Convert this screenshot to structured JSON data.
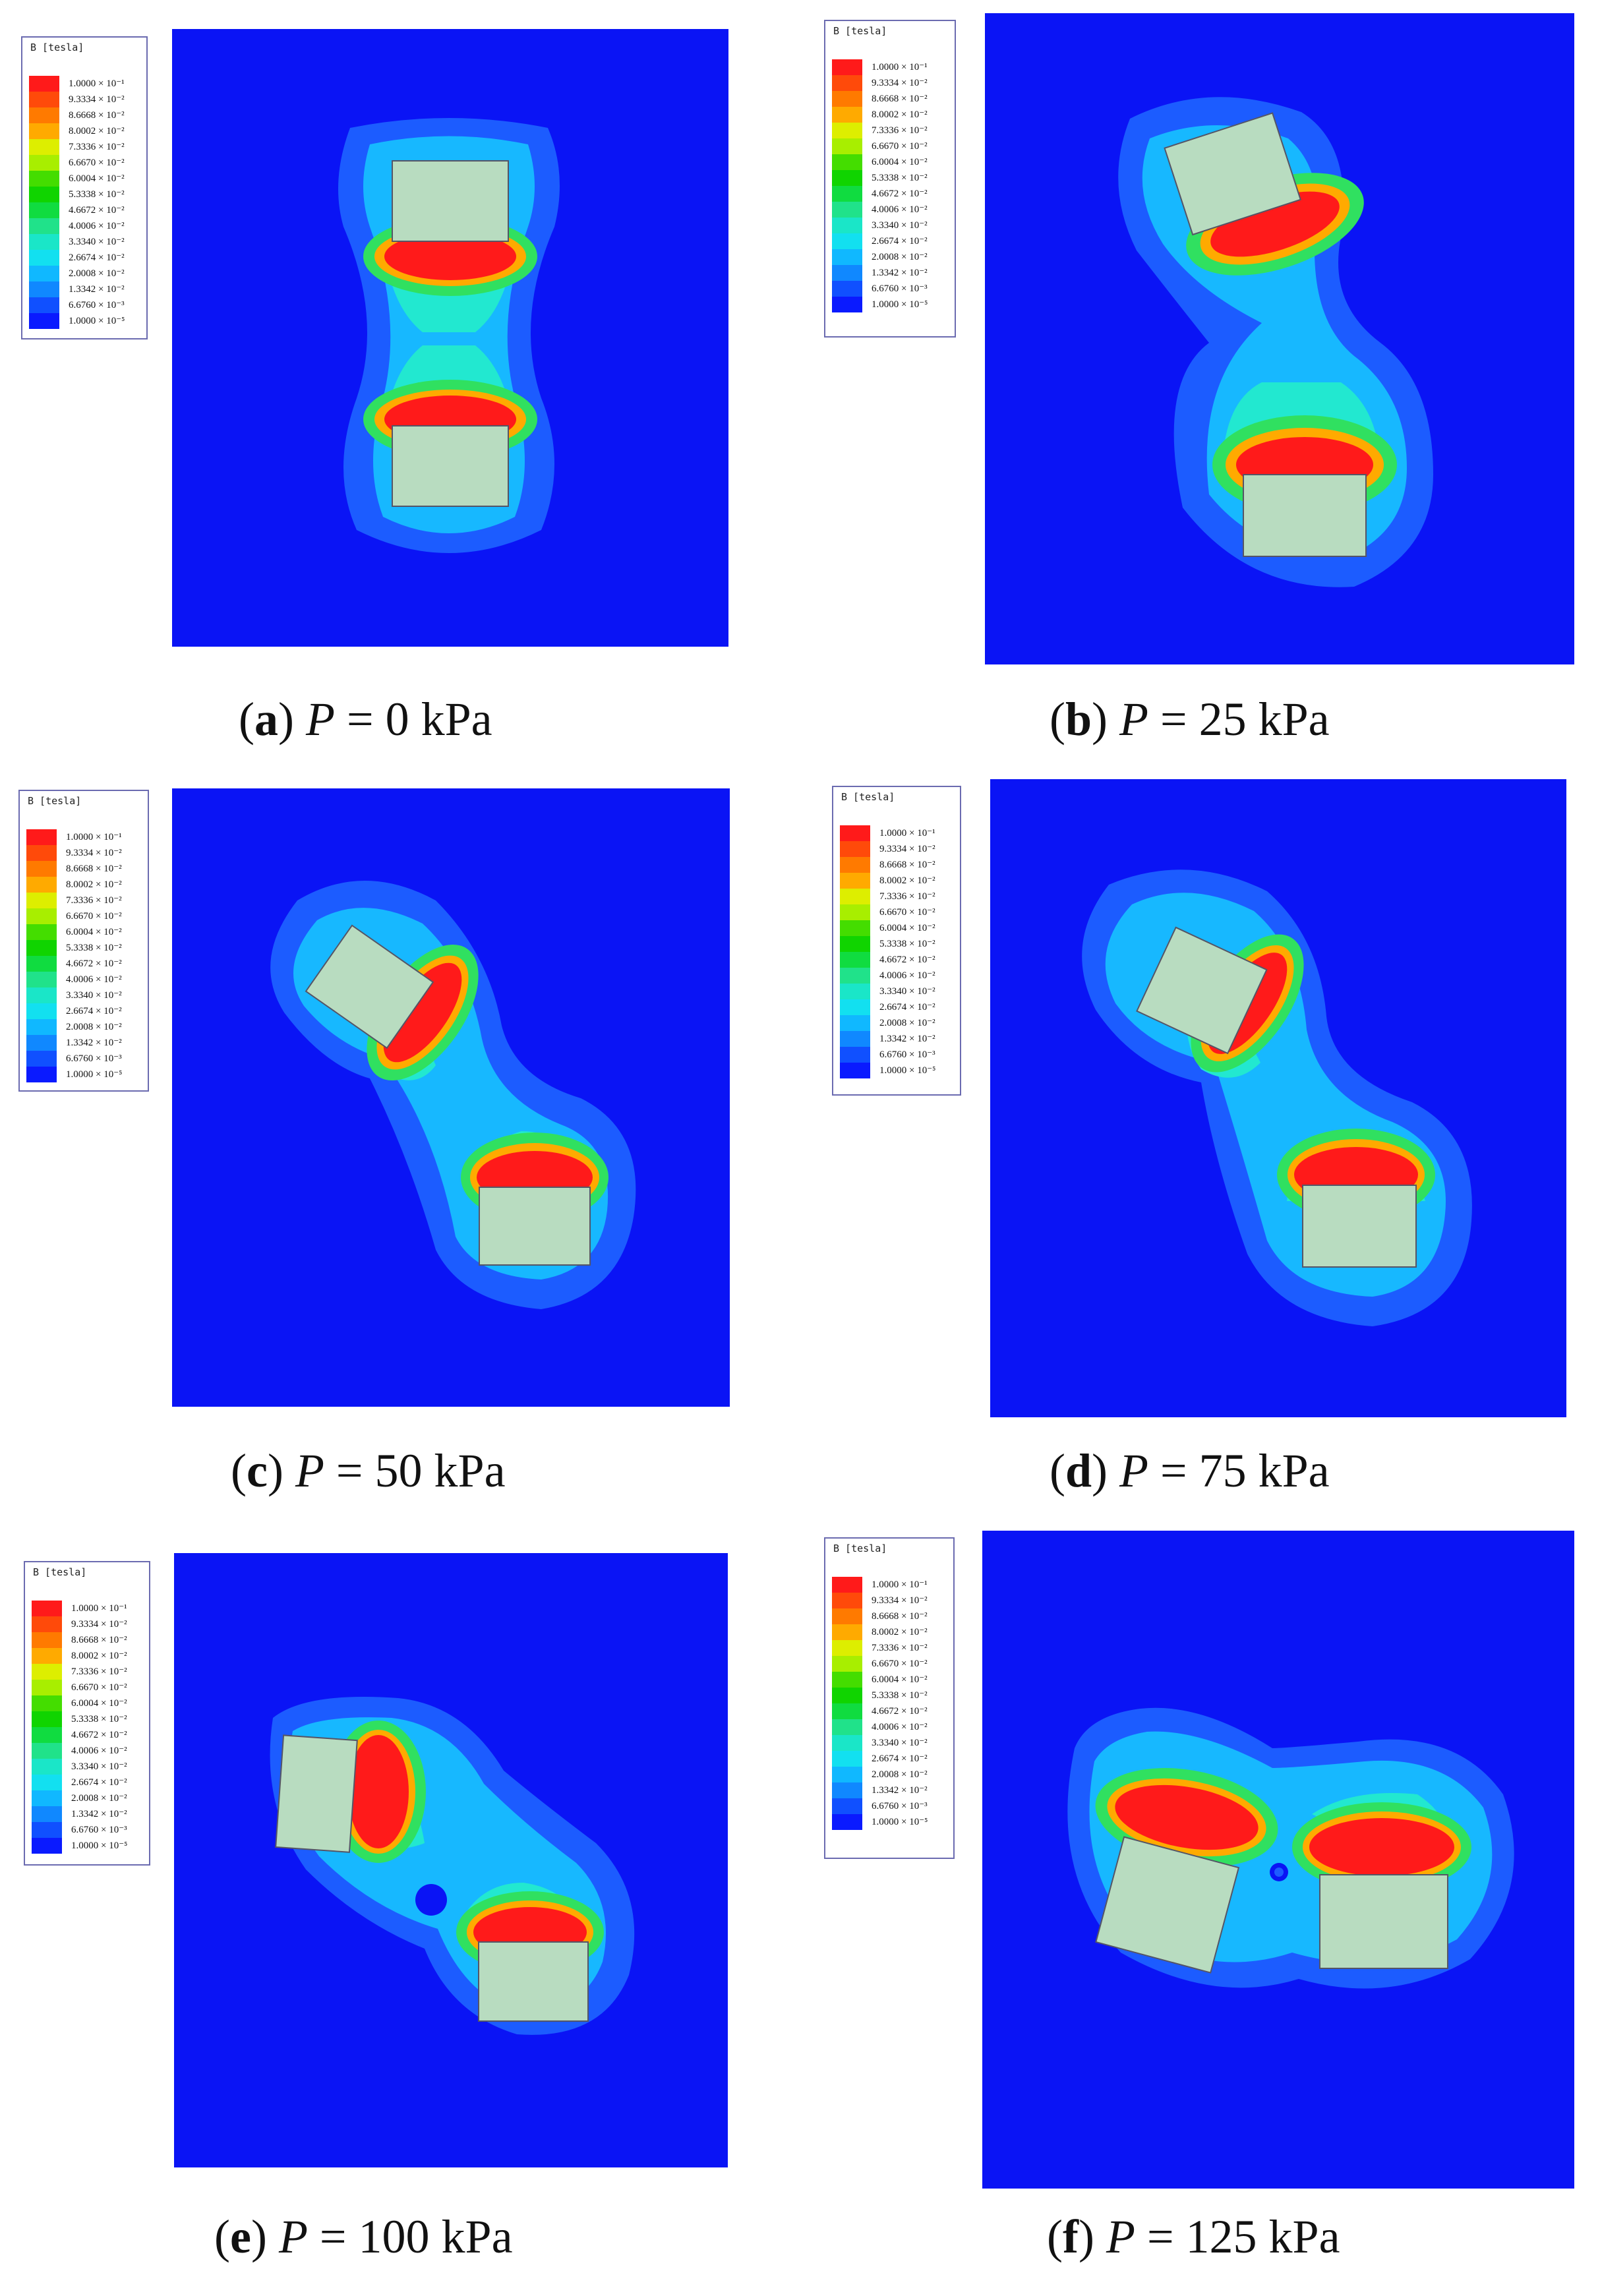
{
  "legend": {
    "title": "B [tesla]",
    "colors": [
      "#ff1a1a",
      "#ff4a0a",
      "#ff7a00",
      "#ffaa00",
      "#ddee00",
      "#a8ee00",
      "#44dd00",
      "#10d400",
      "#10dc40",
      "#20e28a",
      "#1ae6c8",
      "#12e0f0",
      "#10b8ff",
      "#1088ff",
      "#1050ff",
      "#0a1aff"
    ],
    "labels": [
      "1.0000 × 10⁻¹",
      "9.3334 × 10⁻²",
      "8.6668 × 10⁻²",
      "8.0002 × 10⁻²",
      "7.3336 × 10⁻²",
      "6.6670 × 10⁻²",
      "6.0004 × 10⁻²",
      "5.3338 × 10⁻²",
      "4.6672 × 10⁻²",
      "4.0006 × 10⁻²",
      "3.3340 × 10⁻²",
      "2.6674 × 10⁻²",
      "2.0008 × 10⁻²",
      "1.3342 × 10⁻²",
      "6.6760 × 10⁻³",
      "1.0000 × 10⁻⁵"
    ]
  },
  "panels": [
    {
      "letter": "a",
      "variable": "P",
      "eq": " = ",
      "value": "0 kPa"
    },
    {
      "letter": "b",
      "variable": "P",
      "eq": " = ",
      "value": "25 kPa"
    },
    {
      "letter": "c",
      "variable": "P",
      "eq": " = ",
      "value": "50 kPa"
    },
    {
      "letter": "d",
      "variable": "P",
      "eq": " = ",
      "value": "75 kPa"
    },
    {
      "letter": "e",
      "variable": "P",
      "eq": " = ",
      "value": "100 kPa"
    },
    {
      "letter": "f",
      "variable": "P",
      "eq": " = ",
      "value": "125 kPa"
    }
  ],
  "colors": {
    "background_field": "#0a14f5",
    "magnet": "#b8dcc0"
  }
}
